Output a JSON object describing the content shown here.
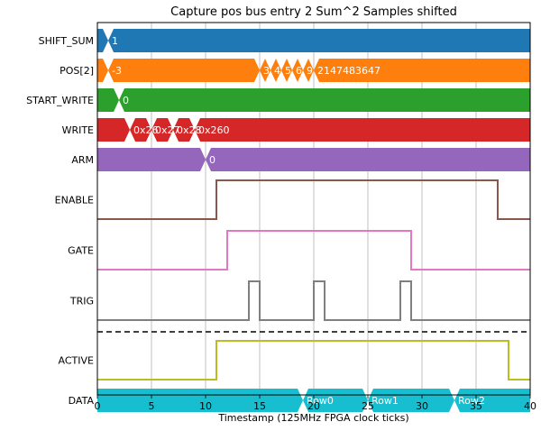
{
  "chart_data": {
    "type": "timing",
    "title": "Capture pos bus entry 2 Sum^2 Samples shifted",
    "xlabel": "Timestamp (125MHz FPGA clock ticks)",
    "xlim": [
      0,
      40
    ],
    "xticks": [
      "0",
      "5",
      "10",
      "15",
      "20",
      "25",
      "30",
      "35",
      "40"
    ],
    "grid": "vertical",
    "separator_after": "TRIG",
    "signals": [
      {
        "name": "SHIFT_SUM",
        "kind": "bus",
        "color": "#1f77b4",
        "events": [
          {
            "t": 1,
            "label": "1"
          }
        ]
      },
      {
        "name": "POS[2]",
        "kind": "bus",
        "color": "#ff7f0e",
        "events": [
          {
            "t": 1,
            "label": "-3"
          },
          {
            "t": 15,
            "label": "3"
          },
          {
            "t": 16,
            "label": "4"
          },
          {
            "t": 17,
            "label": "5"
          },
          {
            "t": 18,
            "label": "6"
          },
          {
            "t": 19,
            "label": "9"
          },
          {
            "t": 20,
            "label": "2147483647"
          }
        ]
      },
      {
        "name": "START_WRITE",
        "kind": "bus",
        "color": "#2ca02c",
        "events": [
          {
            "t": 2,
            "label": "0"
          }
        ]
      },
      {
        "name": "WRITE",
        "kind": "bus",
        "color": "#d62728",
        "events": [
          {
            "t": 3,
            "label": "0x26"
          },
          {
            "t": 5,
            "label": "0x27"
          },
          {
            "t": 7,
            "label": "0x28"
          },
          {
            "t": 9,
            "label": "0x260"
          }
        ]
      },
      {
        "name": "ARM",
        "kind": "bus",
        "color": "#9467bd",
        "events": [
          {
            "t": 10,
            "label": "0"
          }
        ]
      },
      {
        "name": "ENABLE",
        "kind": "bit",
        "color": "#8c564b",
        "steps": [
          [
            0,
            0
          ],
          [
            11,
            1
          ],
          [
            37,
            0
          ]
        ]
      },
      {
        "name": "GATE",
        "kind": "bit",
        "color": "#e377c2",
        "steps": [
          [
            0,
            0
          ],
          [
            12,
            1
          ],
          [
            29,
            0
          ]
        ]
      },
      {
        "name": "TRIG",
        "kind": "bit",
        "color": "#7f7f7f",
        "steps": [
          [
            0,
            0
          ],
          [
            14,
            1
          ],
          [
            15,
            0
          ],
          [
            20,
            1
          ],
          [
            21,
            0
          ],
          [
            28,
            1
          ],
          [
            29,
            0
          ]
        ]
      },
      {
        "name": "ACTIVE",
        "kind": "bit",
        "color": "#bcbd22",
        "steps": [
          [
            0,
            0
          ],
          [
            11,
            1
          ],
          [
            38,
            0
          ]
        ]
      },
      {
        "name": "DATA",
        "kind": "bus",
        "color": "#17becf",
        "events": [
          {
            "t": 19,
            "label": "Row0"
          },
          {
            "t": 25,
            "label": "Row1"
          },
          {
            "t": 33,
            "label": "Row2"
          }
        ]
      }
    ]
  }
}
